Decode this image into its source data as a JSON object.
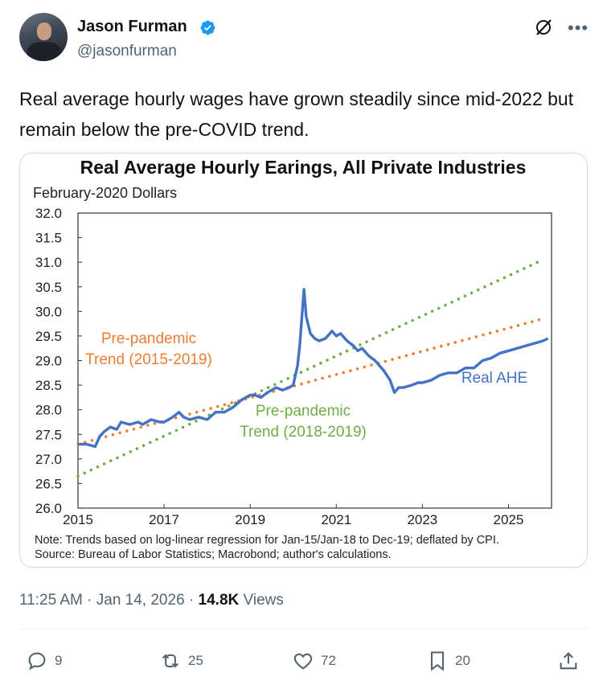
{
  "author": {
    "name": "Jason Furman",
    "handle": "@jasonfurman"
  },
  "tweet": {
    "text": "Real average hourly wages have grown steadily since mid-2022 but remain below the pre-COVID trend."
  },
  "meta": {
    "time": "11:25 AM",
    "date": "Jan 14, 2026",
    "views": "14.8K",
    "views_label": "Views"
  },
  "actions": {
    "replies": "9",
    "reposts": "25",
    "likes": "72",
    "bookmarks": "20"
  },
  "colors": {
    "real_ahe": "#4472c4",
    "trend_2015_2019": "#ed7d31",
    "trend_2018_2019": "#70ad47"
  },
  "chart_data": {
    "type": "line",
    "title": "Real Average Hourly Earings, All Private Industries",
    "ylabel": "February-2020 Dollars",
    "xlim": [
      2015,
      2026
    ],
    "ylim": [
      26.0,
      32.0
    ],
    "xticks": [
      "2015",
      "2017",
      "2019",
      "2021",
      "2023",
      "2025"
    ],
    "xtick_values": [
      2015,
      2017,
      2019,
      2021,
      2023,
      2025
    ],
    "yticks": [
      "26.0",
      "26.5",
      "27.0",
      "27.5",
      "28.0",
      "28.5",
      "29.0",
      "29.5",
      "30.0",
      "30.5",
      "31.0",
      "31.5",
      "32.0"
    ],
    "ytick_values": [
      26.0,
      26.5,
      27.0,
      27.5,
      28.0,
      28.5,
      29.0,
      29.5,
      30.0,
      30.5,
      31.0,
      31.5,
      32.0
    ],
    "grid": false,
    "notes": [
      "Note: Trends based on log-linear regression for Jan-15/Jan-18 to Dec-19; deflated by CPI.",
      "Source: Bureau of Labor Statistics; Macrobond; author's calculations."
    ],
    "series": [
      {
        "name": "Real AHE",
        "style": "solid",
        "label_lines": [
          "Real AHE"
        ],
        "x": [
          2015.0,
          2015.2,
          2015.4,
          2015.5,
          2015.6,
          2015.75,
          2015.9,
          2016.0,
          2016.2,
          2016.4,
          2016.5,
          2016.7,
          2016.9,
          2017.0,
          2017.2,
          2017.35,
          2017.45,
          2017.6,
          2017.8,
          2018.0,
          2018.2,
          2018.4,
          2018.6,
          2018.8,
          2019.0,
          2019.1,
          2019.25,
          2019.4,
          2019.5,
          2019.6,
          2019.75,
          2019.9,
          2020.0,
          2020.1,
          2020.15,
          2020.25,
          2020.3,
          2020.4,
          2020.5,
          2020.6,
          2020.75,
          2020.9,
          2021.0,
          2021.1,
          2021.25,
          2021.4,
          2021.5,
          2021.6,
          2021.75,
          2021.9,
          2022.0,
          2022.1,
          2022.25,
          2022.35,
          2022.45,
          2022.55,
          2022.75,
          2022.9,
          2023.0,
          2023.2,
          2023.4,
          2023.6,
          2023.8,
          2024.0,
          2024.2,
          2024.4,
          2024.6,
          2024.8,
          2025.0,
          2025.2,
          2025.4,
          2025.6,
          2025.8,
          2025.92
        ],
        "y": [
          27.3,
          27.3,
          27.25,
          27.45,
          27.55,
          27.65,
          27.6,
          27.75,
          27.7,
          27.75,
          27.7,
          27.8,
          27.75,
          27.75,
          27.85,
          27.95,
          27.85,
          27.8,
          27.85,
          27.8,
          27.95,
          27.95,
          28.05,
          28.2,
          28.3,
          28.3,
          28.25,
          28.35,
          28.4,
          28.45,
          28.4,
          28.45,
          28.5,
          28.9,
          29.3,
          30.45,
          29.9,
          29.55,
          29.45,
          29.4,
          29.45,
          29.6,
          29.5,
          29.55,
          29.4,
          29.3,
          29.2,
          29.25,
          29.1,
          29.0,
          28.9,
          28.8,
          28.6,
          28.35,
          28.45,
          28.45,
          28.5,
          28.55,
          28.55,
          28.6,
          28.7,
          28.75,
          28.75,
          28.85,
          28.85,
          29.0,
          29.05,
          29.15,
          29.2,
          29.25,
          29.3,
          29.35,
          29.4,
          29.45
        ]
      },
      {
        "name": "Pre-pandemic Trend (2015-2019)",
        "style": "dotted",
        "label_lines": [
          "Pre-pandemic",
          "Trend (2015-2019)"
        ],
        "x": [
          2015.0,
          2025.8
        ],
        "y": [
          27.3,
          29.85
        ]
      },
      {
        "name": "Pre-pandemic Trend (2018-2019)",
        "style": "dotted",
        "label_lines": [
          "Pre-pandemic",
          "Trend (2018-2019)"
        ],
        "x": [
          2015.0,
          2025.8
        ],
        "y": [
          26.65,
          31.05
        ]
      }
    ]
  }
}
